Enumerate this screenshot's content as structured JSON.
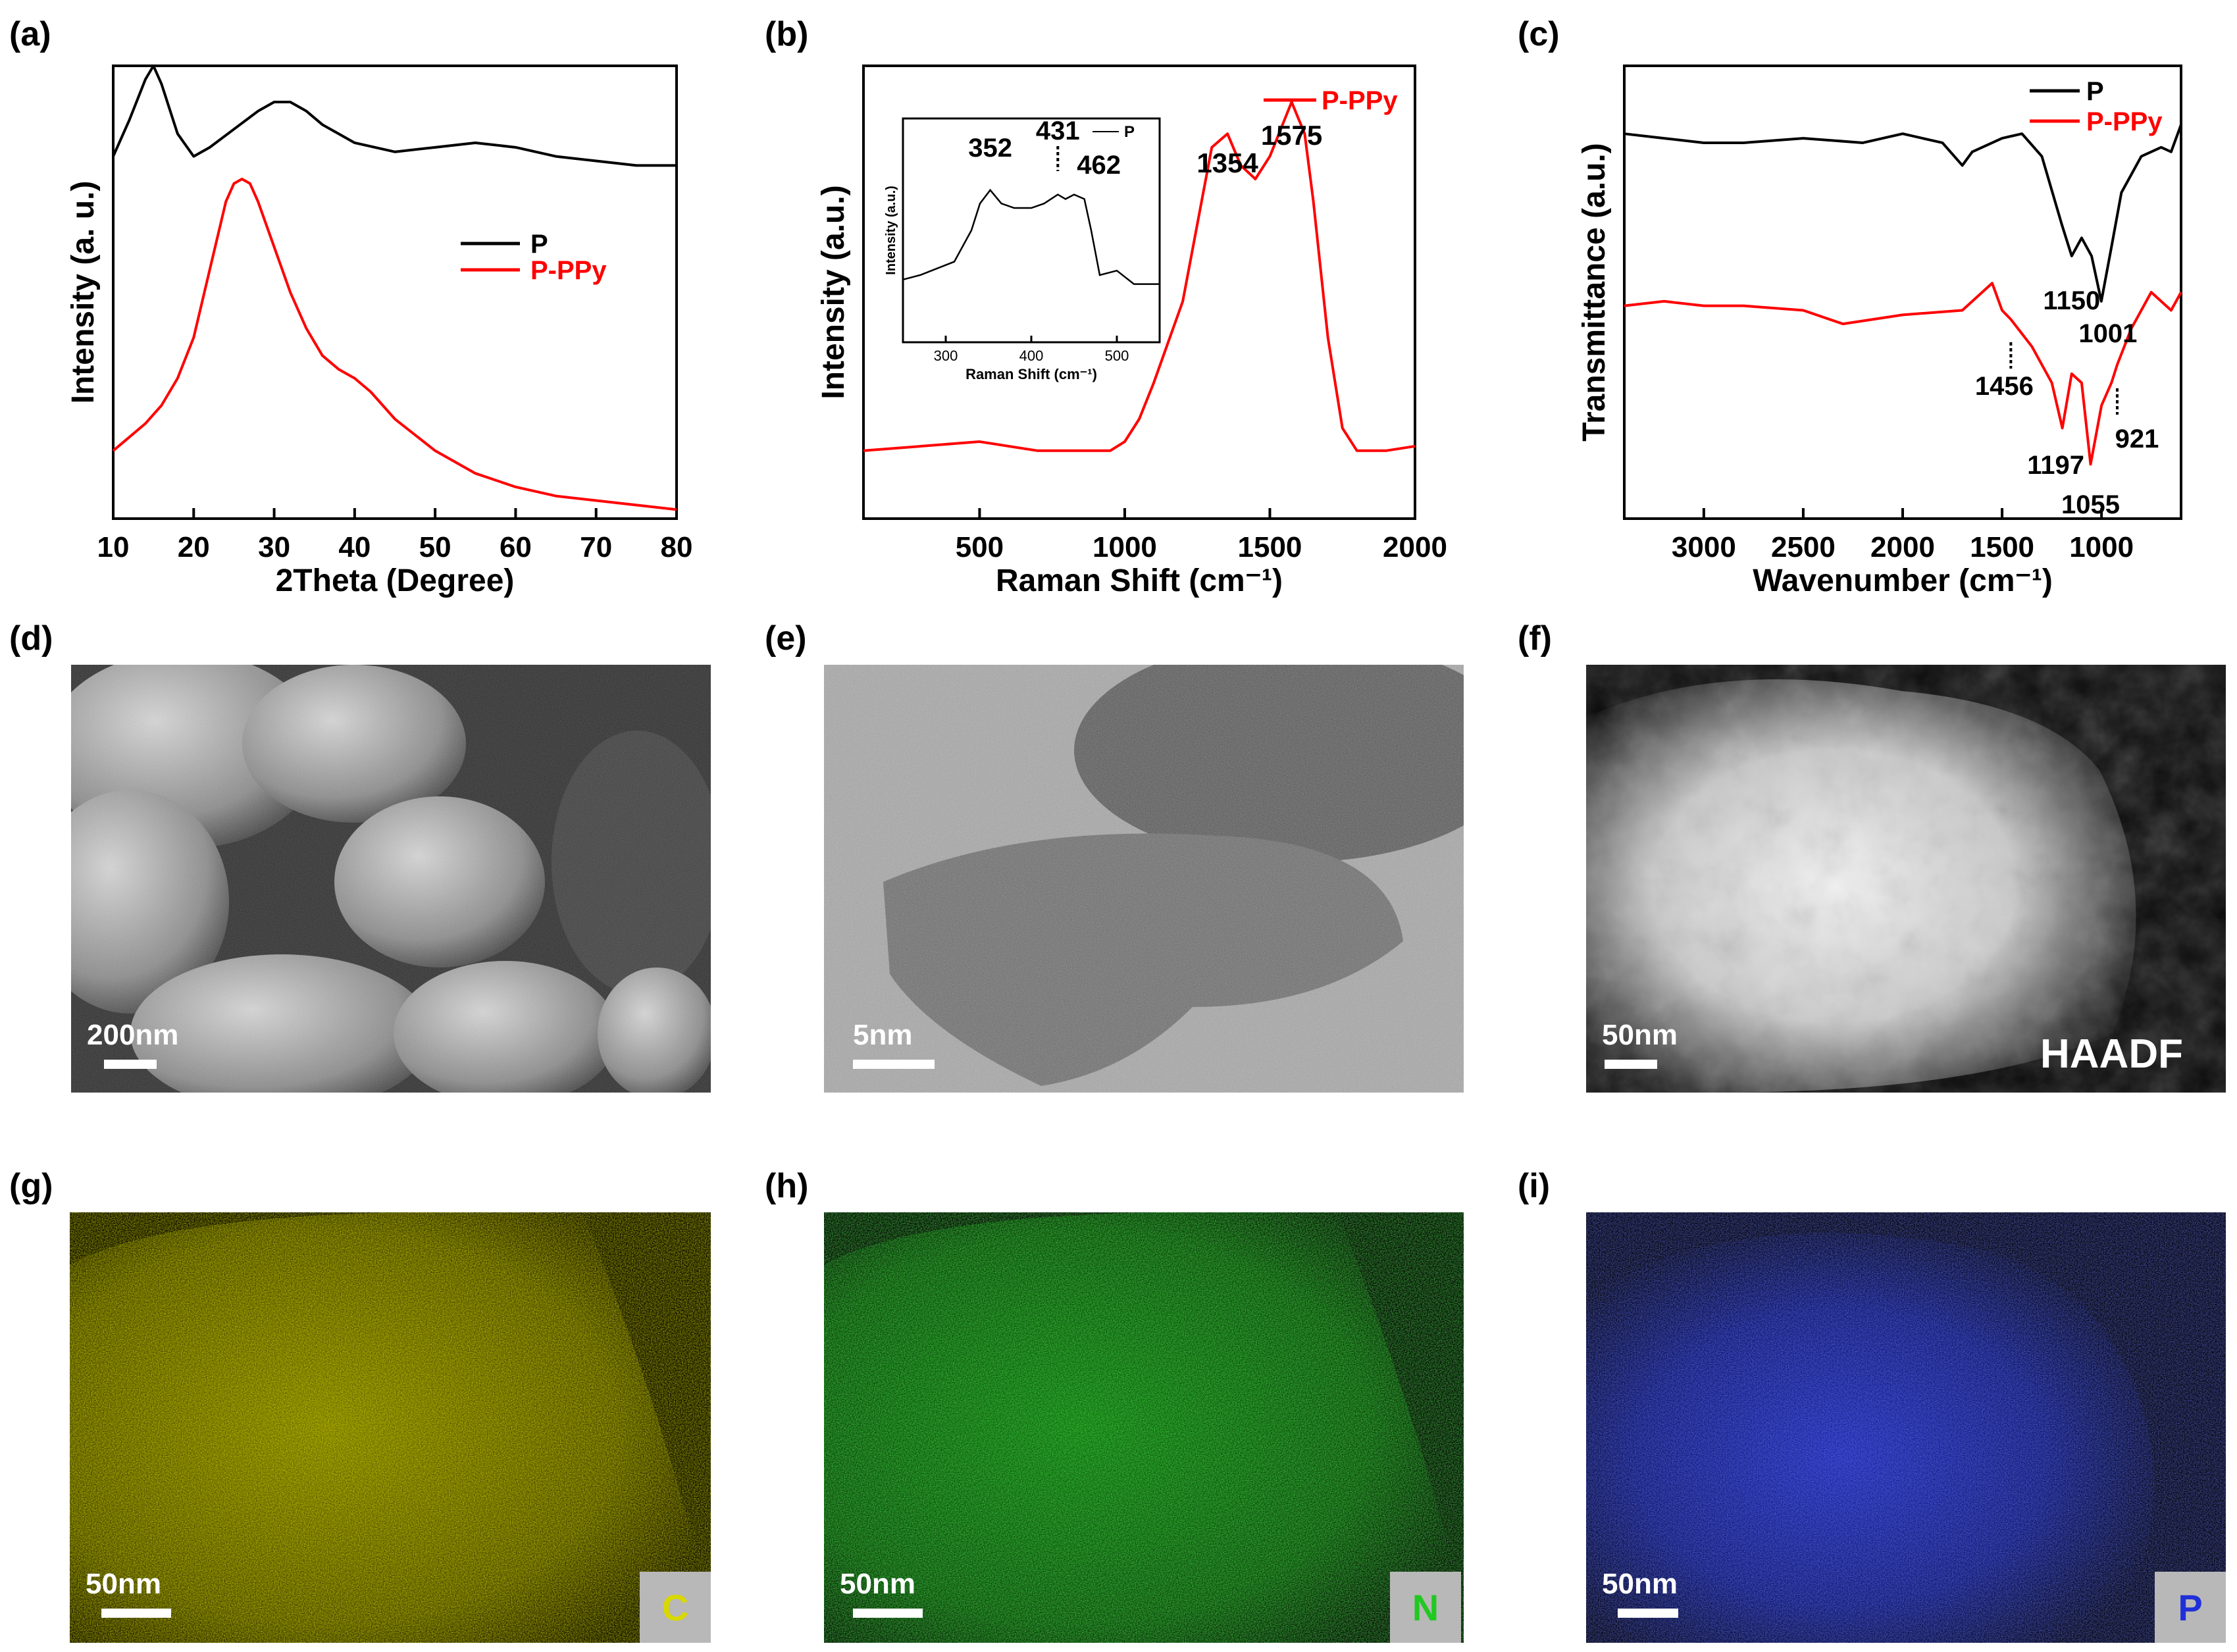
{
  "panels": {
    "a": "(a)",
    "b": "(b)",
    "c": "(c)",
    "d": "(d)",
    "e": "(e)",
    "f": "(f)",
    "g": "(g)",
    "h": "(h)",
    "i": "(i)"
  },
  "chart_data": [
    {
      "id": "a",
      "type": "line",
      "xlabel": "2Theta (Degree)",
      "ylabel": "Intensity (a. u.)",
      "xlim": [
        10,
        80
      ],
      "xticks": [
        "10",
        "20",
        "30",
        "40",
        "50",
        "60",
        "70",
        "80"
      ],
      "legend_position": "center-right",
      "series": [
        {
          "name": "P",
          "color": "#000000",
          "x": [
            10,
            12,
            14,
            15,
            16,
            18,
            20,
            22,
            25,
            28,
            30,
            32,
            34,
            36,
            40,
            45,
            50,
            55,
            60,
            65,
            70,
            75,
            80
          ],
          "y": [
            0.8,
            0.88,
            0.97,
            1.0,
            0.96,
            0.85,
            0.8,
            0.82,
            0.86,
            0.9,
            0.92,
            0.92,
            0.9,
            0.87,
            0.83,
            0.81,
            0.82,
            0.83,
            0.82,
            0.8,
            0.79,
            0.78,
            0.78
          ]
        },
        {
          "name": "P-PPy",
          "color": "#ff0000",
          "x": [
            10,
            12,
            14,
            16,
            18,
            20,
            22,
            24,
            25,
            26,
            27,
            28,
            30,
            32,
            34,
            36,
            38,
            40,
            42,
            45,
            50,
            55,
            60,
            65,
            70,
            75,
            80
          ],
          "y": [
            0.15,
            0.18,
            0.21,
            0.25,
            0.31,
            0.4,
            0.55,
            0.7,
            0.74,
            0.75,
            0.74,
            0.7,
            0.6,
            0.5,
            0.42,
            0.36,
            0.33,
            0.31,
            0.28,
            0.22,
            0.15,
            0.1,
            0.07,
            0.05,
            0.04,
            0.03,
            0.02
          ]
        }
      ]
    },
    {
      "id": "b",
      "type": "line",
      "xlabel": "Raman Shift (cm⁻¹)",
      "ylabel": "Intensity (a.u.)",
      "xlim": [
        100,
        2000
      ],
      "xticks": [
        "500",
        "1000",
        "1500",
        "2000"
      ],
      "legend_position": "top-right",
      "series": [
        {
          "name": "P-PPy",
          "color": "#ff0000",
          "x": [
            100,
            300,
            500,
            700,
            800,
            950,
            1000,
            1050,
            1100,
            1200,
            1250,
            1300,
            1354,
            1400,
            1450,
            1500,
            1550,
            1575,
            1620,
            1650,
            1700,
            1750,
            1800,
            1900,
            2000
          ],
          "y": [
            0.15,
            0.16,
            0.17,
            0.15,
            0.15,
            0.15,
            0.17,
            0.22,
            0.3,
            0.48,
            0.65,
            0.82,
            0.85,
            0.78,
            0.75,
            0.8,
            0.88,
            0.92,
            0.85,
            0.7,
            0.4,
            0.2,
            0.15,
            0.15,
            0.16
          ]
        }
      ],
      "annotations": [
        "1354",
        "1575"
      ],
      "inset": {
        "xlabel": "Raman Shift (cm⁻¹)",
        "ylabel": "Intensity (a.u.)",
        "xlim": [
          250,
          550
        ],
        "xticks": [
          "300",
          "400",
          "500"
        ],
        "series": [
          {
            "name": "P",
            "color": "#000000",
            "x": [
              250,
              270,
              290,
              310,
              330,
              340,
              352,
              365,
              380,
              400,
              415,
              431,
              440,
              450,
              462,
              470,
              480,
              500,
              520,
              540,
              550
            ],
            "y": [
              0.28,
              0.3,
              0.33,
              0.36,
              0.5,
              0.62,
              0.68,
              0.62,
              0.6,
              0.6,
              0.62,
              0.66,
              0.64,
              0.66,
              0.64,
              0.5,
              0.3,
              0.32,
              0.26,
              0.26,
              0.26
            ]
          }
        ],
        "annotations": [
          "352",
          "431",
          "462"
        ]
      }
    },
    {
      "id": "c",
      "type": "line",
      "xlabel": "Wavenumber (cm⁻¹)",
      "ylabel": "Transmittance (a.u.)",
      "xlim": [
        3400,
        600
      ],
      "xticks": [
        "3000",
        "2500",
        "2000",
        "1500",
        "1000"
      ],
      "legend_position": "top-right",
      "series": [
        {
          "name": "P",
          "color": "#000000",
          "x": [
            3400,
            3200,
            3000,
            2800,
            2500,
            2200,
            2000,
            1800,
            1700,
            1650,
            1500,
            1400,
            1300,
            1200,
            1150,
            1100,
            1050,
            1001,
            950,
            900,
            800,
            700,
            650,
            600
          ],
          "y": [
            0.85,
            0.84,
            0.83,
            0.83,
            0.84,
            0.83,
            0.85,
            0.83,
            0.78,
            0.81,
            0.84,
            0.85,
            0.8,
            0.65,
            0.58,
            0.62,
            0.58,
            0.48,
            0.6,
            0.72,
            0.8,
            0.82,
            0.81,
            0.87
          ]
        },
        {
          "name": "P-PPy",
          "color": "#ff0000",
          "x": [
            3400,
            3200,
            3000,
            2800,
            2500,
            2300,
            2000,
            1700,
            1600,
            1550,
            1500,
            1456,
            1350,
            1250,
            1197,
            1150,
            1100,
            1055,
            1000,
            950,
            921,
            850,
            750,
            650,
            600
          ],
          "y": [
            0.47,
            0.48,
            0.47,
            0.47,
            0.46,
            0.43,
            0.45,
            0.46,
            0.5,
            0.52,
            0.46,
            0.44,
            0.38,
            0.3,
            0.2,
            0.32,
            0.3,
            0.12,
            0.25,
            0.3,
            0.34,
            0.42,
            0.5,
            0.46,
            0.5
          ]
        }
      ],
      "annotations": [
        "1150",
        "1001",
        "1456",
        "1197",
        "921",
        "1055"
      ]
    }
  ],
  "micrographs": {
    "d": {
      "scale": "200nm"
    },
    "e": {
      "scale": "5nm"
    },
    "f": {
      "scale": "50nm",
      "label": "HAADF"
    },
    "g": {
      "scale": "50nm",
      "element": "C",
      "color": "#d8d800"
    },
    "h": {
      "scale": "50nm",
      "element": "N",
      "color": "#22c822"
    },
    "i": {
      "scale": "50nm",
      "element": "P",
      "color": "#2030d8"
    }
  }
}
